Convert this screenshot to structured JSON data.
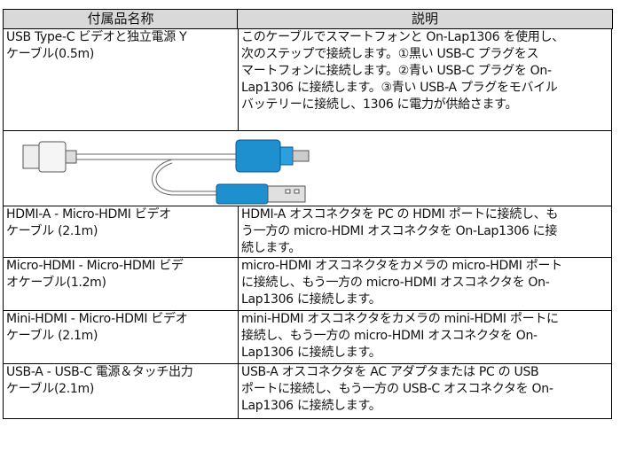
{
  "header": {
    "name": "付属品名称",
    "description": "説明"
  },
  "rows": [
    {
      "name": [
        "USB Type-C ビデオと独立電源 Y",
        "ケーブル(0.5m)"
      ],
      "description": [
        "このケーブルでスマートフォンと On-Lap1306 を使用し、",
        "次のステップで接続します。①黒い USB-C プラグをス",
        "マートフォンに接続します。②青い USB-C プラグを On-",
        "Lap1306 に接続します。③青い USB-A プラグをモバイル",
        "バッテリーに接続し、1306 に電力が供給さます。"
      ]
    },
    {
      "name": [
        "HDMI-A - Micro-HDMI ビデオ",
        "ケーブル (2.1m)"
      ],
      "description": [
        "HDMI-A オスコネクタを PC の HDMI ポートに接続し、も",
        "う一方の micro-HDMI オスコネクタを On-Lap1306 に接",
        "続します。"
      ]
    },
    {
      "name": [
        "Micro-HDMI - Micro-HDMI ビデ",
        "オケーブル(1.2m)"
      ],
      "description": [
        "micro-HDMI オスコネクタをカメラの micro-HDMI ポート",
        "に接続し、もう一方の micro-HDMI オスコネクタを On-",
        "Lap1306 に接続します。"
      ]
    },
    {
      "name": [
        "Mini-HDMI - Micro-HDMI ビデオ",
        "ケーブル (2.1m)"
      ],
      "description": [
        "mini-HDMI オスコネクタをカメラの mini-HDMI ポートに",
        "接続し、もう一方の micro-HDMI オスコネクタを On-",
        "Lap1306 に接続します。"
      ]
    },
    {
      "name": [
        "USB-A - USB-C 電源＆タッチ出力",
        "ケーブル(2.1m)"
      ],
      "description": [
        "USB-A オスコネクタを AC アダプタまたは PC の USB",
        "ポートに接続し、もう一方の USB-C オスコネクタを On-",
        "Lap1306 に接続します。"
      ]
    }
  ]
}
